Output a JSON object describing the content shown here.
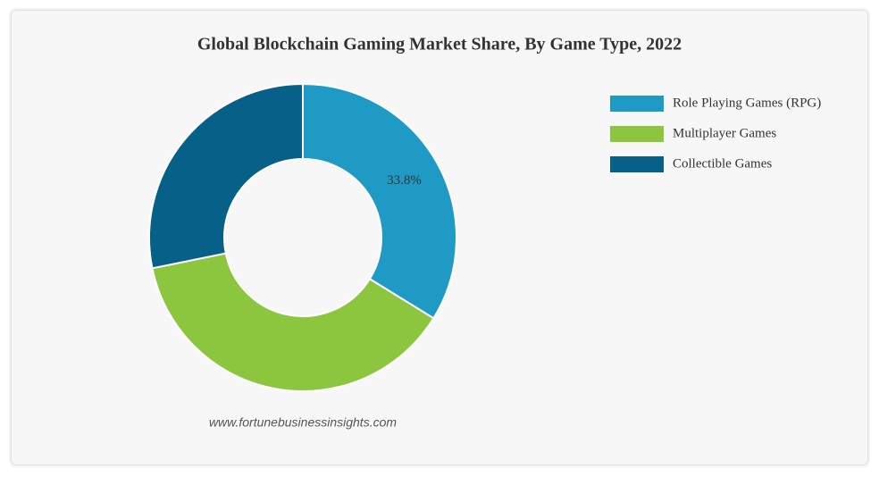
{
  "chart_data": {
    "type": "pie",
    "title": "Global Blockchain Gaming Market Share, By Game Type, 2022",
    "categories": [
      "Role Playing Games (RPG)",
      "Multiplayer Games",
      "Collectible Games"
    ],
    "values": [
      33.8,
      38.0,
      28.2
    ],
    "value_labels": [
      "33.8%",
      null,
      null
    ],
    "colors": [
      "#1e9ac5",
      "#8cc63f",
      "#066088"
    ],
    "source": "www.fortunebusinessinsights.com",
    "legend": "right"
  }
}
